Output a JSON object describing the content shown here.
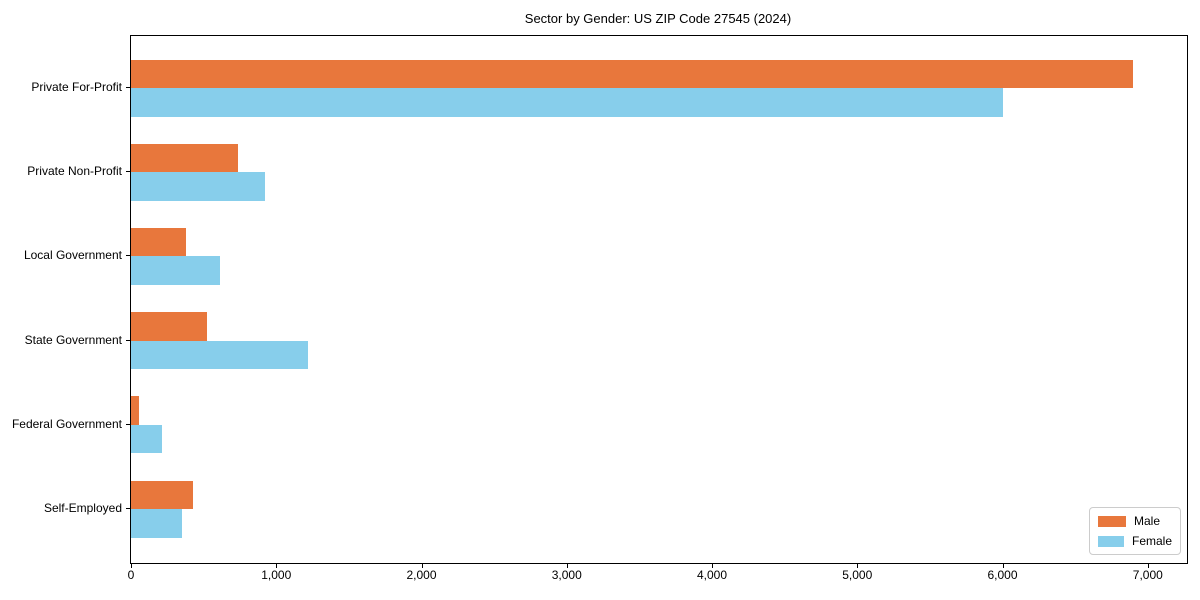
{
  "chart_data": {
    "type": "bar",
    "orientation": "horizontal",
    "title": "Sector by Gender: US ZIP Code 27545 (2024)",
    "categories": [
      "Private For-Profit",
      "Private Non-Profit",
      "Local Government",
      "State Government",
      "Federal Government",
      "Self-Employed"
    ],
    "series": [
      {
        "name": "Male",
        "color": "#E8773C",
        "values": [
          6900,
          740,
          380,
          520,
          55,
          430
        ]
      },
      {
        "name": "Female",
        "color": "#87CEEB",
        "values": [
          6000,
          920,
          610,
          1220,
          210,
          350
        ]
      }
    ],
    "xlim": [
      0,
      7270
    ],
    "xticks": [
      0,
      1000,
      2000,
      3000,
      4000,
      5000,
      6000,
      7000
    ],
    "xtick_labels": [
      "0",
      "1,000",
      "2,000",
      "3,000",
      "4,000",
      "5,000",
      "6,000",
      "7,000"
    ],
    "ylabel": "",
    "xlabel": "",
    "grid": false,
    "legend_position": "lower right"
  }
}
